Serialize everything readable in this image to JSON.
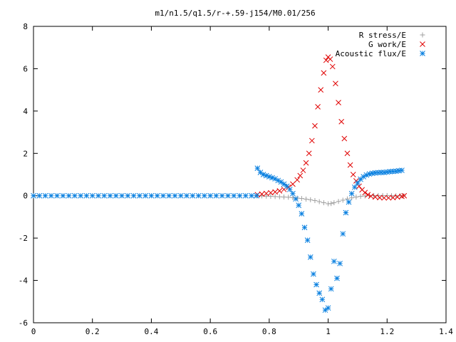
{
  "chart_data": {
    "type": "scatter",
    "title": "m1/n1.5/q1.5/r-+.59-j154/M0.01/256",
    "xlabel": "",
    "ylabel": "",
    "xlim": [
      0,
      1.4
    ],
    "ylim": [
      -6,
      8
    ],
    "x_ticks": [
      "0",
      "0.2",
      "0.4",
      "0.6",
      "0.8",
      "1",
      "1.2",
      "1.4"
    ],
    "y_ticks": [
      "8",
      "6",
      "4",
      "2",
      "0",
      "-2",
      "-4",
      "-6"
    ],
    "x_tick_values": [
      0,
      0.2,
      0.4,
      0.6,
      0.8,
      1.0,
      1.2,
      1.4
    ],
    "y_tick_values": [
      8,
      6,
      4,
      2,
      0,
      -2,
      -4,
      -6
    ],
    "grid": false,
    "legend_position": "top-right",
    "series": [
      {
        "name": "R stress/E",
        "marker": "plus",
        "color": "#a0a0a0",
        "points": [
          [
            0.76,
            0
          ],
          [
            0.775,
            -0.01
          ],
          [
            0.79,
            -0.02
          ],
          [
            0.805,
            -0.03
          ],
          [
            0.82,
            -0.04
          ],
          [
            0.835,
            -0.05
          ],
          [
            0.85,
            -0.06
          ],
          [
            0.865,
            -0.07
          ],
          [
            0.88,
            -0.09
          ],
          [
            0.895,
            -0.11
          ],
          [
            0.91,
            -0.13
          ],
          [
            0.925,
            -0.16
          ],
          [
            0.94,
            -0.19
          ],
          [
            0.955,
            -0.23
          ],
          [
            0.97,
            -0.28
          ],
          [
            0.985,
            -0.33
          ],
          [
            1.0,
            -0.38
          ],
          [
            1.01,
            -0.37
          ],
          [
            1.02,
            -0.33
          ],
          [
            1.035,
            -0.27
          ],
          [
            1.05,
            -0.21
          ],
          [
            1.065,
            -0.15
          ],
          [
            1.08,
            -0.1
          ],
          [
            1.095,
            -0.06
          ],
          [
            1.11,
            -0.03
          ],
          [
            1.125,
            -0.01
          ],
          [
            1.14,
            0
          ],
          [
            1.155,
            0.01
          ],
          [
            1.17,
            0.01
          ],
          [
            1.185,
            0.01
          ],
          [
            1.2,
            0.01
          ],
          [
            1.215,
            0
          ],
          [
            1.23,
            0
          ],
          [
            1.245,
            0
          ],
          [
            1.255,
            0
          ]
        ]
      },
      {
        "name": "G work/E",
        "marker": "cross",
        "color": "#e00000",
        "points": [
          [
            0.76,
            0.05
          ],
          [
            0.775,
            0.08
          ],
          [
            0.79,
            0.11
          ],
          [
            0.805,
            0.14
          ],
          [
            0.82,
            0.18
          ],
          [
            0.835,
            0.23
          ],
          [
            0.85,
            0.3
          ],
          [
            0.865,
            0.4
          ],
          [
            0.88,
            0.55
          ],
          [
            0.895,
            0.75
          ],
          [
            0.905,
            0.95
          ],
          [
            0.915,
            1.2
          ],
          [
            0.925,
            1.55
          ],
          [
            0.935,
            2.0
          ],
          [
            0.945,
            2.6
          ],
          [
            0.955,
            3.3
          ],
          [
            0.965,
            4.2
          ],
          [
            0.975,
            5.0
          ],
          [
            0.985,
            5.8
          ],
          [
            0.993,
            6.4
          ],
          [
            1.0,
            6.55
          ],
          [
            1.007,
            6.45
          ],
          [
            1.015,
            6.1
          ],
          [
            1.025,
            5.3
          ],
          [
            1.035,
            4.4
          ],
          [
            1.045,
            3.5
          ],
          [
            1.055,
            2.7
          ],
          [
            1.065,
            2.0
          ],
          [
            1.075,
            1.45
          ],
          [
            1.085,
            1.0
          ],
          [
            1.095,
            0.7
          ],
          [
            1.105,
            0.45
          ],
          [
            1.115,
            0.28
          ],
          [
            1.125,
            0.15
          ],
          [
            1.135,
            0.05
          ],
          [
            1.145,
            -0.02
          ],
          [
            1.16,
            -0.06
          ],
          [
            1.175,
            -0.09
          ],
          [
            1.19,
            -0.1
          ],
          [
            1.205,
            -0.1
          ],
          [
            1.22,
            -0.09
          ],
          [
            1.235,
            -0.06
          ],
          [
            1.25,
            -0.03
          ],
          [
            1.258,
            0
          ]
        ]
      },
      {
        "name": "Acoustic flux/E",
        "marker": "star",
        "color": "#0a80e0",
        "points": [
          [
            0,
            0
          ],
          [
            0.02,
            0
          ],
          [
            0.04,
            0
          ],
          [
            0.06,
            0
          ],
          [
            0.08,
            0
          ],
          [
            0.1,
            0
          ],
          [
            0.12,
            0
          ],
          [
            0.14,
            0
          ],
          [
            0.16,
            0
          ],
          [
            0.18,
            0
          ],
          [
            0.2,
            0
          ],
          [
            0.22,
            0
          ],
          [
            0.24,
            0
          ],
          [
            0.26,
            0
          ],
          [
            0.28,
            0
          ],
          [
            0.3,
            0
          ],
          [
            0.32,
            0
          ],
          [
            0.34,
            0
          ],
          [
            0.36,
            0
          ],
          [
            0.38,
            0
          ],
          [
            0.4,
            0
          ],
          [
            0.42,
            0
          ],
          [
            0.44,
            0
          ],
          [
            0.46,
            0
          ],
          [
            0.48,
            0
          ],
          [
            0.5,
            0
          ],
          [
            0.52,
            0
          ],
          [
            0.54,
            0
          ],
          [
            0.56,
            0
          ],
          [
            0.58,
            0
          ],
          [
            0.6,
            0
          ],
          [
            0.62,
            0
          ],
          [
            0.64,
            0
          ],
          [
            0.66,
            0
          ],
          [
            0.68,
            0
          ],
          [
            0.7,
            0
          ],
          [
            0.72,
            0
          ],
          [
            0.74,
            0
          ],
          [
            0.757,
            0
          ],
          [
            0.76,
            1.3
          ],
          [
            0.77,
            1.1
          ],
          [
            0.78,
            1.0
          ],
          [
            0.79,
            0.95
          ],
          [
            0.8,
            0.9
          ],
          [
            0.81,
            0.85
          ],
          [
            0.82,
            0.8
          ],
          [
            0.83,
            0.72
          ],
          [
            0.84,
            0.65
          ],
          [
            0.85,
            0.55
          ],
          [
            0.86,
            0.45
          ],
          [
            0.87,
            0.3
          ],
          [
            0.88,
            0.1
          ],
          [
            0.89,
            -0.15
          ],
          [
            0.9,
            -0.45
          ],
          [
            0.91,
            -0.85
          ],
          [
            0.92,
            -1.5
          ],
          [
            0.93,
            -2.1
          ],
          [
            0.94,
            -2.9
          ],
          [
            0.95,
            -3.7
          ],
          [
            0.96,
            -4.2
          ],
          [
            0.97,
            -4.6
          ],
          [
            0.98,
            -4.9
          ],
          [
            0.99,
            -5.4
          ],
          [
            1.0,
            -5.3
          ],
          [
            1.01,
            -4.4
          ],
          [
            1.02,
            -3.1
          ],
          [
            1.03,
            -3.9
          ],
          [
            1.04,
            -3.2
          ],
          [
            1.05,
            -1.8
          ],
          [
            1.06,
            -0.8
          ],
          [
            1.07,
            -0.3
          ],
          [
            1.08,
            0.1
          ],
          [
            1.09,
            0.4
          ],
          [
            1.1,
            0.6
          ],
          [
            1.11,
            0.78
          ],
          [
            1.12,
            0.9
          ],
          [
            1.13,
            0.98
          ],
          [
            1.14,
            1.03
          ],
          [
            1.15,
            1.06
          ],
          [
            1.16,
            1.08
          ],
          [
            1.17,
            1.09
          ],
          [
            1.18,
            1.1
          ],
          [
            1.19,
            1.1
          ],
          [
            1.2,
            1.12
          ],
          [
            1.21,
            1.14
          ],
          [
            1.22,
            1.15
          ],
          [
            1.23,
            1.16
          ],
          [
            1.24,
            1.18
          ],
          [
            1.25,
            1.2
          ]
        ]
      }
    ]
  }
}
